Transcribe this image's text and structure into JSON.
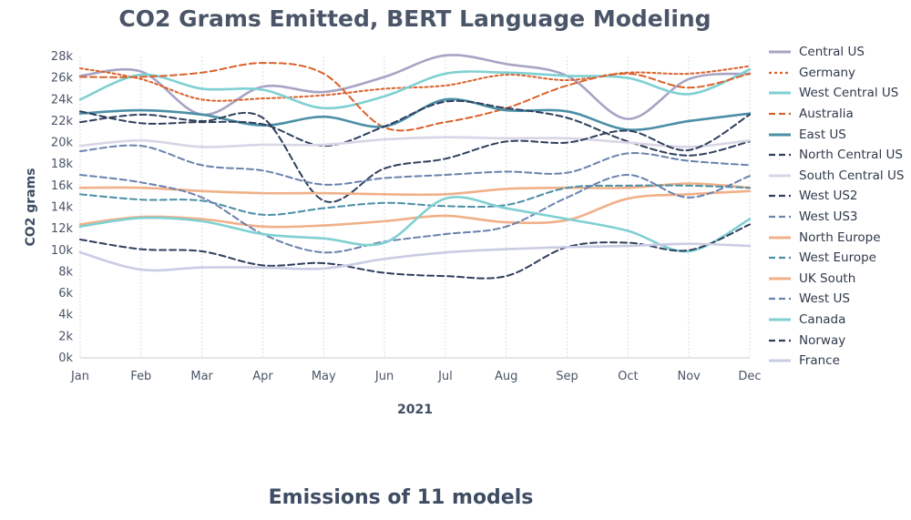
{
  "page": {
    "subtitle": "Emissions of 11 models"
  },
  "chart_data": {
    "type": "line",
    "title": "CO2 Grams Emitted, BERT Language Modeling",
    "xlabel": "2021",
    "ylabel": "CO2 grams",
    "ylim": [
      0,
      28000
    ],
    "yticks": [
      0,
      2000,
      4000,
      6000,
      8000,
      10000,
      12000,
      14000,
      16000,
      18000,
      20000,
      22000,
      24000,
      26000,
      28000
    ],
    "ytick_labels": [
      "0k",
      "2k",
      "4k",
      "6k",
      "8k",
      "10k",
      "12k",
      "14k",
      "16k",
      "18k",
      "20k",
      "22k",
      "24k",
      "26k",
      "28k"
    ],
    "categories": [
      "Jan",
      "Feb",
      "Mar",
      "Apr",
      "May",
      "Jun",
      "Jul",
      "Aug",
      "Sep",
      "Oct",
      "Nov",
      "Dec"
    ],
    "grid": "vertical",
    "legend_position": "right",
    "series": [
      {
        "name": "Central US",
        "color": "#a8a3c4",
        "dash": "solid",
        "values": [
          26200,
          26600,
          22600,
          25200,
          24700,
          26100,
          28100,
          27300,
          26200,
          22200,
          25900,
          26400
        ]
      },
      {
        "name": "Germany",
        "color": "#d9622b",
        "dash": "dotted",
        "values": [
          26900,
          25900,
          24000,
          24100,
          24400,
          25000,
          25300,
          26300,
          25800,
          26500,
          26400,
          27100
        ]
      },
      {
        "name": "West Central US",
        "color": "#7fd0d3",
        "dash": "solid",
        "values": [
          24000,
          26300,
          25000,
          24900,
          23200,
          24300,
          26400,
          26500,
          26200,
          26000,
          24500,
          26800
        ]
      },
      {
        "name": "Australia",
        "color": "#d9622b",
        "dash": "dashed",
        "values": [
          26100,
          26100,
          26500,
          27400,
          26400,
          21400,
          21900,
          23200,
          25300,
          26400,
          25100,
          26400
        ]
      },
      {
        "name": "East US",
        "color": "#4a8fa6",
        "dash": "solid",
        "values": [
          22700,
          23000,
          22600,
          21600,
          22400,
          21500,
          24000,
          23000,
          22900,
          21200,
          22000,
          22700
        ]
      },
      {
        "name": "North Central US",
        "color": "#2f3f5c",
        "dash": "dashed",
        "values": [
          22900,
          21800,
          21900,
          21700,
          19700,
          21500,
          23800,
          23200,
          22300,
          20100,
          18800,
          20100
        ]
      },
      {
        "name": "South Central US",
        "color": "#d8d5e6",
        "dash": "solid",
        "values": [
          19700,
          20200,
          19600,
          19800,
          19800,
          20300,
          20500,
          20400,
          20400,
          20000,
          19600,
          20200
        ]
      },
      {
        "name": "West US2",
        "color": "#2f3f5c",
        "dash": "dashed",
        "values": [
          21900,
          22600,
          22000,
          22300,
          14600,
          17600,
          18500,
          20100,
          20000,
          21100,
          19300,
          22600
        ]
      },
      {
        "name": "West US3",
        "color": "#6a82ad",
        "dash": "dashed",
        "values": [
          19200,
          19700,
          17900,
          17400,
          16100,
          16700,
          17000,
          17300,
          17200,
          19000,
          18300,
          17900
        ]
      },
      {
        "name": "North Europe",
        "color": "#f0b089",
        "dash": "solid",
        "values": [
          15800,
          15800,
          15500,
          15300,
          15300,
          15200,
          15200,
          15700,
          15800,
          15800,
          16200,
          15800
        ]
      },
      {
        "name": "West Europe",
        "color": "#4a8fa6",
        "dash": "dashed",
        "values": [
          15200,
          14700,
          14600,
          13300,
          13900,
          14400,
          14100,
          14200,
          15800,
          16000,
          16000,
          15800
        ]
      },
      {
        "name": "UK South",
        "color": "#f0b089",
        "dash": "solid",
        "values": [
          12400,
          13100,
          12900,
          12200,
          12300,
          12700,
          13200,
          12600,
          12800,
          14800,
          15200,
          15500
        ]
      },
      {
        "name": "West US",
        "color": "#6a82ad",
        "dash": "dashed",
        "values": [
          17000,
          16300,
          14900,
          11500,
          9800,
          10800,
          11500,
          12200,
          14900,
          17000,
          14900,
          16900
        ]
      },
      {
        "name": "Canada",
        "color": "#7fd0d3",
        "dash": "solid",
        "values": [
          12200,
          13000,
          12700,
          11500,
          11100,
          10700,
          14800,
          13900,
          12900,
          11800,
          9900,
          12900
        ]
      },
      {
        "name": "Norway",
        "color": "#2f3f5c",
        "dash": "dashed",
        "values": [
          11000,
          10100,
          9900,
          8600,
          8800,
          7900,
          7600,
          7600,
          10300,
          10700,
          10000,
          12400
        ]
      },
      {
        "name": "France",
        "color": "#c9cce4",
        "dash": "solid",
        "values": [
          9800,
          8200,
          8400,
          8400,
          8300,
          9200,
          9800,
          10100,
          10300,
          10400,
          10600,
          10400
        ]
      }
    ]
  }
}
